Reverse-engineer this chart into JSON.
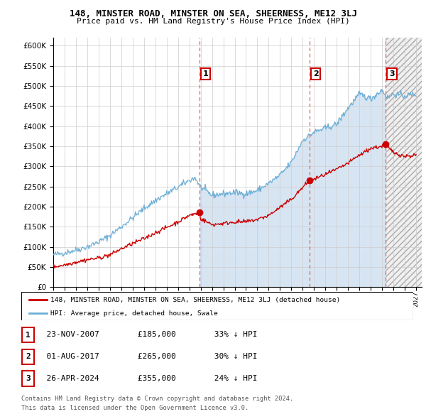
{
  "title": "148, MINSTER ROAD, MINSTER ON SEA, SHEERNESS, ME12 3LJ",
  "subtitle": "Price paid vs. HM Land Registry's House Price Index (HPI)",
  "ytick_values": [
    0,
    50000,
    100000,
    150000,
    200000,
    250000,
    300000,
    350000,
    400000,
    450000,
    500000,
    550000,
    600000
  ],
  "xlim_start": 1995.0,
  "xlim_end": 2027.5,
  "ylim_min": 0,
  "ylim_max": 620000,
  "purchases": [
    {
      "label": "1",
      "date_num": 2007.9,
      "price": 185000
    },
    {
      "label": "2",
      "date_num": 2017.6,
      "price": 265000
    },
    {
      "label": "3",
      "date_num": 2024.33,
      "price": 355000
    }
  ],
  "legend_line1": "148, MINSTER ROAD, MINSTER ON SEA, SHEERNESS, ME12 3LJ (detached house)",
  "legend_line2": "HPI: Average price, detached house, Swale",
  "table": [
    {
      "num": "1",
      "date": "23-NOV-2007",
      "price": "£185,000",
      "change": "33% ↓ HPI"
    },
    {
      "num": "2",
      "date": "01-AUG-2017",
      "price": "£265,000",
      "change": "30% ↓ HPI"
    },
    {
      "num": "3",
      "date": "26-APR-2024",
      "price": "£355,000",
      "change": "24% ↓ HPI"
    }
  ],
  "footer1": "Contains HM Land Registry data © Crown copyright and database right 2024.",
  "footer2": "This data is licensed under the Open Government Licence v3.0.",
  "hpi_color": "#6baed6",
  "hpi_fill_color": "#c6dbef",
  "price_color": "#cc0000",
  "vline_color": "#e06060",
  "hatch_start": 2024.33
}
